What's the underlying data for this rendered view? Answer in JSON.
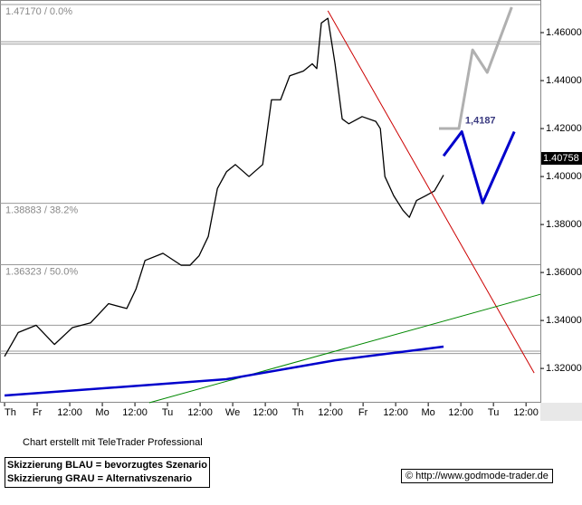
{
  "chart_data": {
    "type": "line",
    "xlim": [
      -0.14,
      16.44
    ],
    "ylim": [
      1.3057,
      1.4736
    ],
    "xticks": [
      {
        "value": 0,
        "label": "Th"
      },
      {
        "value": 1,
        "label": "Fr"
      },
      {
        "value": 2,
        "label": "12:00"
      },
      {
        "value": 3,
        "label": "Mo"
      },
      {
        "value": 4,
        "label": "12:00"
      },
      {
        "value": 5,
        "label": "Tu"
      },
      {
        "value": 6,
        "label": "12:00"
      },
      {
        "value": 7,
        "label": "We"
      },
      {
        "value": 8,
        "label": "12:00"
      },
      {
        "value": 9,
        "label": "Th"
      },
      {
        "value": 10,
        "label": "12:00"
      },
      {
        "value": 11,
        "label": "Fr"
      },
      {
        "value": 12,
        "label": "12:00"
      },
      {
        "value": 13,
        "label": "Mo"
      },
      {
        "value": 14,
        "label": "12:00"
      },
      {
        "value": 15,
        "label": "Tu"
      },
      {
        "value": 16,
        "label": "12:00"
      }
    ],
    "yticks": [
      {
        "value": 1.46,
        "label": "1.46000"
      },
      {
        "value": 1.44,
        "label": "1.44000"
      },
      {
        "value": 1.42,
        "label": "1.42000"
      },
      {
        "value": 1.4,
        "label": "1.40000"
      },
      {
        "value": 1.38,
        "label": "1.38000"
      },
      {
        "value": 1.36,
        "label": "1.36000"
      },
      {
        "value": 1.34,
        "label": "1.34000"
      },
      {
        "value": 1.32,
        "label": "1.32000"
      }
    ],
    "hlines": [
      1.4717,
      1.4562,
      1.4552,
      1.38883,
      1.36323,
      1.338,
      1.3272,
      1.3262
    ],
    "annotations": [
      {
        "text": "1.47170 / 0.0%",
        "value": 1.4717
      },
      {
        "text": "1.38883 / 38.2%",
        "value": 1.38883
      },
      {
        "text": "1.36323 / 50.0%",
        "value": 1.36323
      }
    ],
    "series": [
      {
        "color": "#000000",
        "x": [
          0,
          0.42,
          0.97,
          1.53,
          2.08,
          2.64,
          3.19,
          3.75,
          4.03,
          4.31,
          4.86,
          5.42,
          5.69,
          5.97,
          6.25,
          6.53,
          6.81,
          7.08,
          7.5,
          7.92,
          8.19,
          8.47,
          8.75,
          9.17,
          9.44,
          9.58,
          9.72,
          9.92,
          10.14,
          10.36,
          10.56,
          10.97,
          11.39,
          11.53,
          11.67,
          11.94,
          12.22,
          12.42,
          12.64,
          12.92,
          13.19,
          13.47
        ],
        "values": [
          1.325,
          1.335,
          1.338,
          1.33,
          1.337,
          1.339,
          1.347,
          1.345,
          1.353,
          1.365,
          1.368,
          1.363,
          1.363,
          1.367,
          1.375,
          1.395,
          1.402,
          1.405,
          1.4,
          1.405,
          1.432,
          1.432,
          1.442,
          1.444,
          1.447,
          1.445,
          1.464,
          1.466,
          1.447,
          1.424,
          1.422,
          1.425,
          1.423,
          1.42,
          1.4,
          1.392,
          1.386,
          1.383,
          1.39,
          1.392,
          1.394,
          1.4006
        ]
      },
      {
        "color": "#cc0000",
        "x": [
          9.92,
          16.25
        ],
        "values": [
          1.4691,
          1.3181
        ]
      },
      {
        "color": "#008800",
        "x": [
          4.44,
          16.44
        ],
        "values": [
          1.3057,
          1.3509
        ]
      },
      {
        "color": "#0000cc",
        "x": [
          0,
          6.81,
          10.14,
          13.47
        ],
        "values": [
          1.3087,
          1.3155,
          1.3234,
          1.3291
        ]
      },
      {
        "color": "#0000cc",
        "x": [
          13.47,
          14.03,
          14.67,
          15.64
        ],
        "values": [
          1.4086,
          1.4187,
          1.389,
          1.4187
        ]
      },
      {
        "color": "#b0b0b0",
        "x": [
          13.33,
          13.94,
          14.36,
          14.81,
          15.56
        ],
        "values": [
          1.42,
          1.42,
          1.4528,
          1.4434,
          1.4706
        ]
      }
    ],
    "level_label": {
      "text": "1,4187",
      "value": 1.4187,
      "x": 14.6
    },
    "last_price": {
      "text": "1.40758",
      "value": 1.40758
    },
    "footer": [
      "Chart erstellt mit TeleTrader Professional",
      "Skizzierung BLAU = bevorzugtes Szenario",
      "Skizzierung GRAU = Alternativszenario",
      "© http://www.godmode-trader.de"
    ]
  }
}
